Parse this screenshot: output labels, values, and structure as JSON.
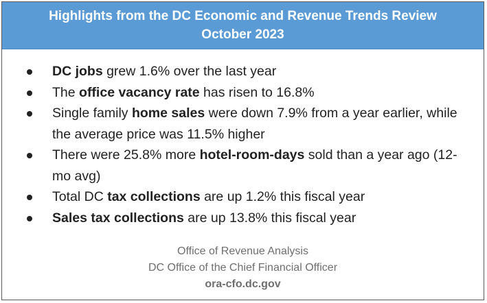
{
  "header": {
    "title_line1": "Highlights from the DC Economic and Revenue Trends Review",
    "title_line2": "October 2023"
  },
  "bullets": [
    {
      "bold": "DC jobs",
      "after": " grew 1.6% over the last year"
    },
    {
      "before": "The ",
      "bold": "office vacancy rate",
      "after": " has risen to 16.8%"
    },
    {
      "before": "Single family ",
      "bold": "home sales",
      "after": " were down 7.9% from a year earlier, while the average price was 11.5% higher"
    },
    {
      "before": "There were 25.8% more ",
      "bold": "hotel-room-days",
      "after": " sold than a year ago (12-mo avg)"
    },
    {
      "before": "Total DC ",
      "bold": "tax collections",
      "after": " are up 1.2% this fiscal year"
    },
    {
      "bold": "Sales tax collections",
      "after": " are up 13.8% this fiscal year"
    }
  ],
  "footer": {
    "office": "Office of Revenue Analysis",
    "org": "DC Office of the Chief Financial Officer",
    "url": "ora-cfo.dc.gov"
  },
  "colors": {
    "header_bg": "#5b9bd5",
    "header_text": "#ffffff",
    "footer_text": "#6e6e6e"
  }
}
